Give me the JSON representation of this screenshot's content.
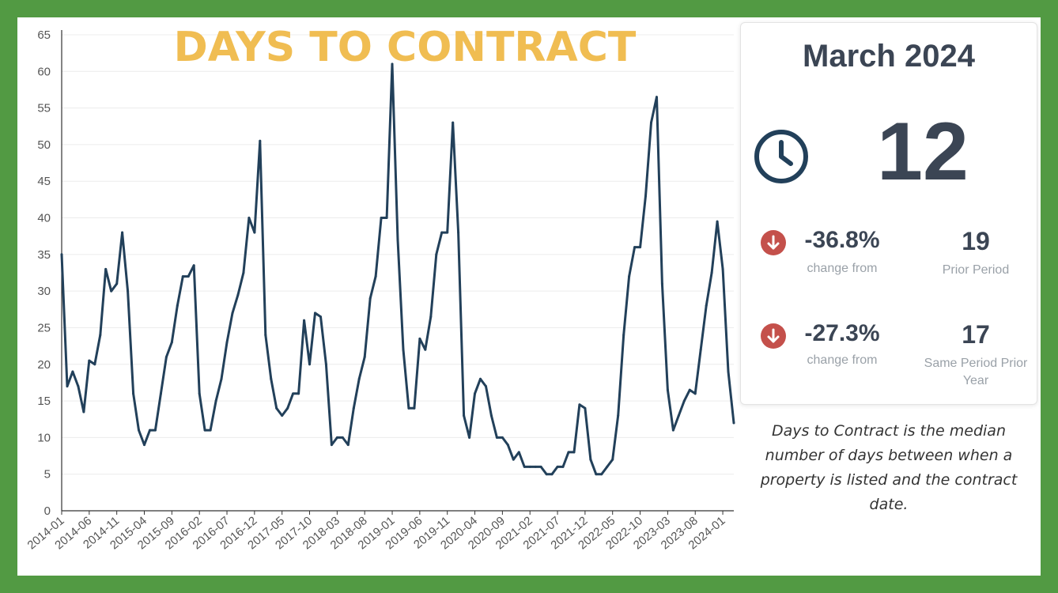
{
  "colors": {
    "frame": "#529a43",
    "title": "#f0bd52",
    "line": "#22405a",
    "down_badge": "#c4504b",
    "text_dark": "#3b4554",
    "text_muted": "#9aa1a8"
  },
  "card": {
    "period": "March 2024",
    "icon": "clock-icon",
    "value": "12",
    "comparisons": [
      {
        "icon": "down-arrow-icon",
        "change": "-36.8%",
        "change_label": "change from",
        "value": "19",
        "label": "Prior Period"
      },
      {
        "icon": "down-arrow-icon",
        "change": "-27.3%",
        "change_label": "change from",
        "value": "17",
        "label": "Same Period Prior Year"
      }
    ]
  },
  "description": "Days to Contract is the median number of days between when a property is listed and the contract date.",
  "chart_data": {
    "type": "line",
    "title": "DAYS TO CONTRACT",
    "xlabel": "",
    "ylabel": "",
    "ylim": [
      0,
      65
    ],
    "yticks": [
      0,
      5,
      10,
      15,
      20,
      25,
      30,
      35,
      40,
      45,
      50,
      55,
      60,
      65
    ],
    "grid": true,
    "x_tick_labels": [
      "2014-01",
      "2014-06",
      "2014-11",
      "2015-04",
      "2015-09",
      "2016-02",
      "2016-07",
      "2016-12",
      "2017-05",
      "2017-10",
      "2018-03",
      "2018-08",
      "2019-01",
      "2019-06",
      "2019-11",
      "2020-04",
      "2020-09",
      "2021-02",
      "2021-07",
      "2021-12",
      "2022-05",
      "2022-10",
      "2023-03",
      "2023-08",
      "2024-01"
    ],
    "x_start": "2014-01",
    "x_end": "2024-03",
    "series": [
      {
        "values": [
          35,
          17,
          19,
          17,
          13.5,
          20.5,
          20,
          24,
          33,
          30,
          31,
          38,
          30,
          16,
          11,
          9,
          11,
          11,
          16,
          21,
          23,
          28,
          32,
          32,
          33.5,
          16,
          11,
          11,
          15,
          18,
          23,
          27,
          29.5,
          32.5,
          40,
          38,
          50.5,
          24,
          18,
          14,
          13,
          14,
          16,
          16,
          26,
          20,
          27,
          26.5,
          20,
          9,
          10,
          10,
          9,
          14,
          18,
          21,
          29,
          32,
          40,
          40,
          61,
          37,
          22,
          14,
          14,
          23.5,
          22,
          26.5,
          35,
          38,
          38,
          53,
          38,
          13,
          10,
          16,
          18,
          17,
          13,
          10,
          10,
          9,
          7,
          8,
          6,
          6,
          6,
          6,
          5,
          5,
          6,
          6,
          8,
          8,
          14.5,
          14,
          7,
          5,
          5,
          6,
          7,
          13,
          24,
          32,
          36,
          36,
          43,
          53,
          56.5,
          31,
          16.5,
          11,
          13,
          15,
          16.5,
          16,
          22,
          28,
          32.5,
          39.5,
          33,
          19,
          12
        ]
      }
    ]
  }
}
